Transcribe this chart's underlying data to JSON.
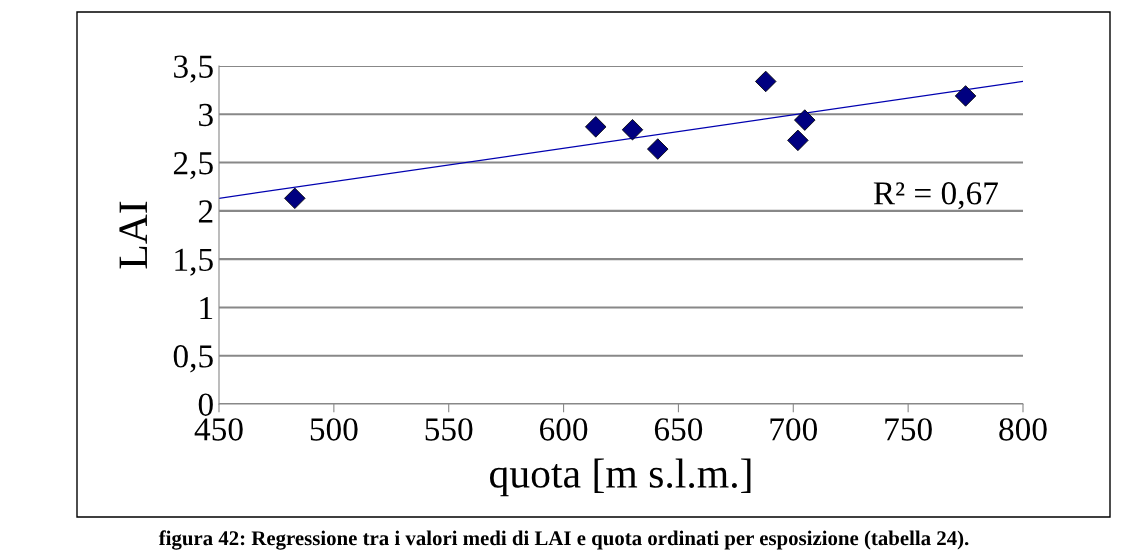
{
  "chart_data": {
    "type": "scatter",
    "xlabel": "quota [m s.l.m.]",
    "ylabel": "LAI",
    "x": [
      483,
      614,
      630,
      641,
      688,
      702,
      705,
      775
    ],
    "series": [
      {
        "color": "#000080",
        "marker": "diamond",
        "values": [
          2.13,
          2.87,
          2.84,
          2.64,
          3.34,
          2.73,
          2.94,
          3.19
        ]
      },
      {
        "type": "line",
        "color": "#0000b0",
        "x": [
          450,
          800
        ],
        "values": [
          2.13,
          3.34
        ]
      }
    ],
    "xlim": [
      450,
      800
    ],
    "xticks": [
      450,
      500,
      550,
      600,
      650,
      700,
      750,
      800
    ],
    "ylim": [
      0,
      3.5
    ],
    "yticks": [
      0,
      {
        "value": 0.5,
        "label": "0,5"
      },
      1,
      {
        "value": 1.5,
        "label": "1,5"
      },
      2,
      {
        "value": 2.5,
        "label": "2,5"
      },
      3,
      {
        "value": 3.5,
        "label": "3,5"
      }
    ],
    "grid": "y",
    "legend": false,
    "annotations": [
      "R² = 0,67",
      "figura 42: Regressione tra i valori medi di LAI e quota ordinati per esposizione (tabella 24)."
    ]
  }
}
